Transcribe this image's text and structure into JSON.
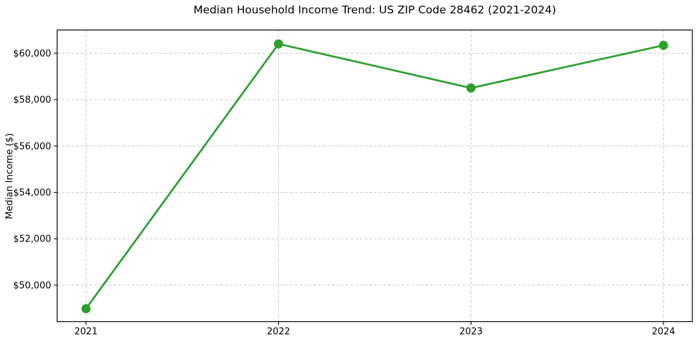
{
  "chart_data": {
    "type": "line",
    "title": "Median Household Income Trend: US ZIP Code 28462 (2021-2024)",
    "xlabel": "",
    "ylabel": "Median Income ($)",
    "x": [
      2021,
      2022,
      2023,
      2024
    ],
    "x_tick_labels": [
      "2021",
      "2022",
      "2023",
      "2024"
    ],
    "series": [
      {
        "values": [
          48990,
          60400,
          58500,
          60340
        ],
        "color": "#2ca02c",
        "marker": "circle"
      }
    ],
    "y_ticks": [
      50000,
      52000,
      54000,
      56000,
      58000,
      60000
    ],
    "y_tick_labels": [
      "$50,000",
      "$52,000",
      "$54,000",
      "$56,000",
      "$58,000",
      "$60,000"
    ],
    "ylim": [
      48430,
      61000
    ],
    "xlim": [
      2020.85,
      2024.15
    ],
    "grid": true,
    "grid_style": "dashed",
    "grid_color": "#cacaca",
    "axis_color": "#000000",
    "background_color": "#ffffff",
    "legend": "none"
  }
}
